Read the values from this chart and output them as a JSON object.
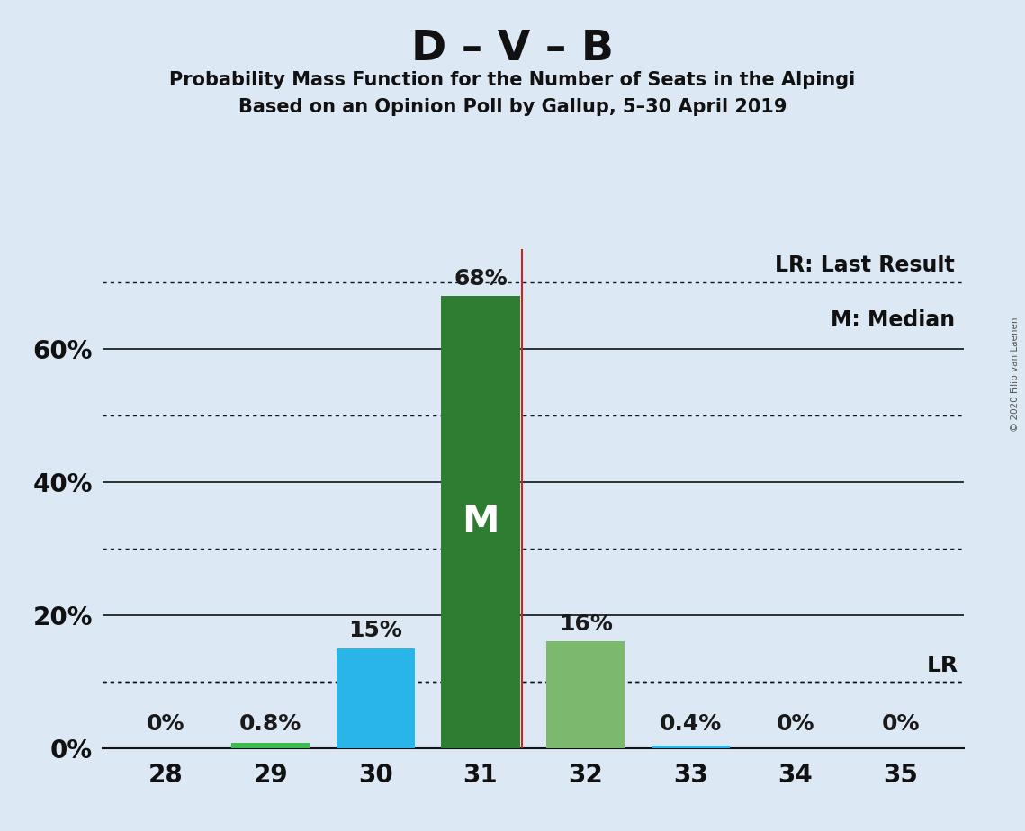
{
  "title": "D – V – B",
  "subtitle1": "Probability Mass Function for the Number of Seats in the Alpingi",
  "subtitle2": "Based on an Opinion Poll by Gallup, 5–30 April 2019",
  "copyright": "© 2020 Filip van Laenen",
  "categories": [
    28,
    29,
    30,
    31,
    32,
    33,
    34,
    35
  ],
  "values": [
    0.0,
    0.8,
    15.0,
    68.0,
    16.0,
    0.4,
    0.0,
    0.0
  ],
  "bar_colors": [
    "#3dba4e",
    "#3dba4e",
    "#29b5e8",
    "#2e7d32",
    "#7cb96e",
    "#29b5e8",
    "#3dba4e",
    "#3dba4e"
  ],
  "value_labels": [
    "0%",
    "0.8%",
    "15%",
    "68%",
    "16%",
    "0.4%",
    "0%",
    "0%"
  ],
  "median_bar_index": 3,
  "median_label": "M",
  "lr_value": 10.0,
  "ylim": [
    0,
    75
  ],
  "yticks_solid": [
    20,
    40,
    60
  ],
  "yticks_dotted": [
    10,
    30,
    50,
    70
  ],
  "background_color": "#dce9f5",
  "lr_line_color": "#cc2222",
  "legend_text1": "LR: Last Result",
  "legend_text2": "M: Median",
  "lr_label": "LR",
  "bar_width": 0.75
}
